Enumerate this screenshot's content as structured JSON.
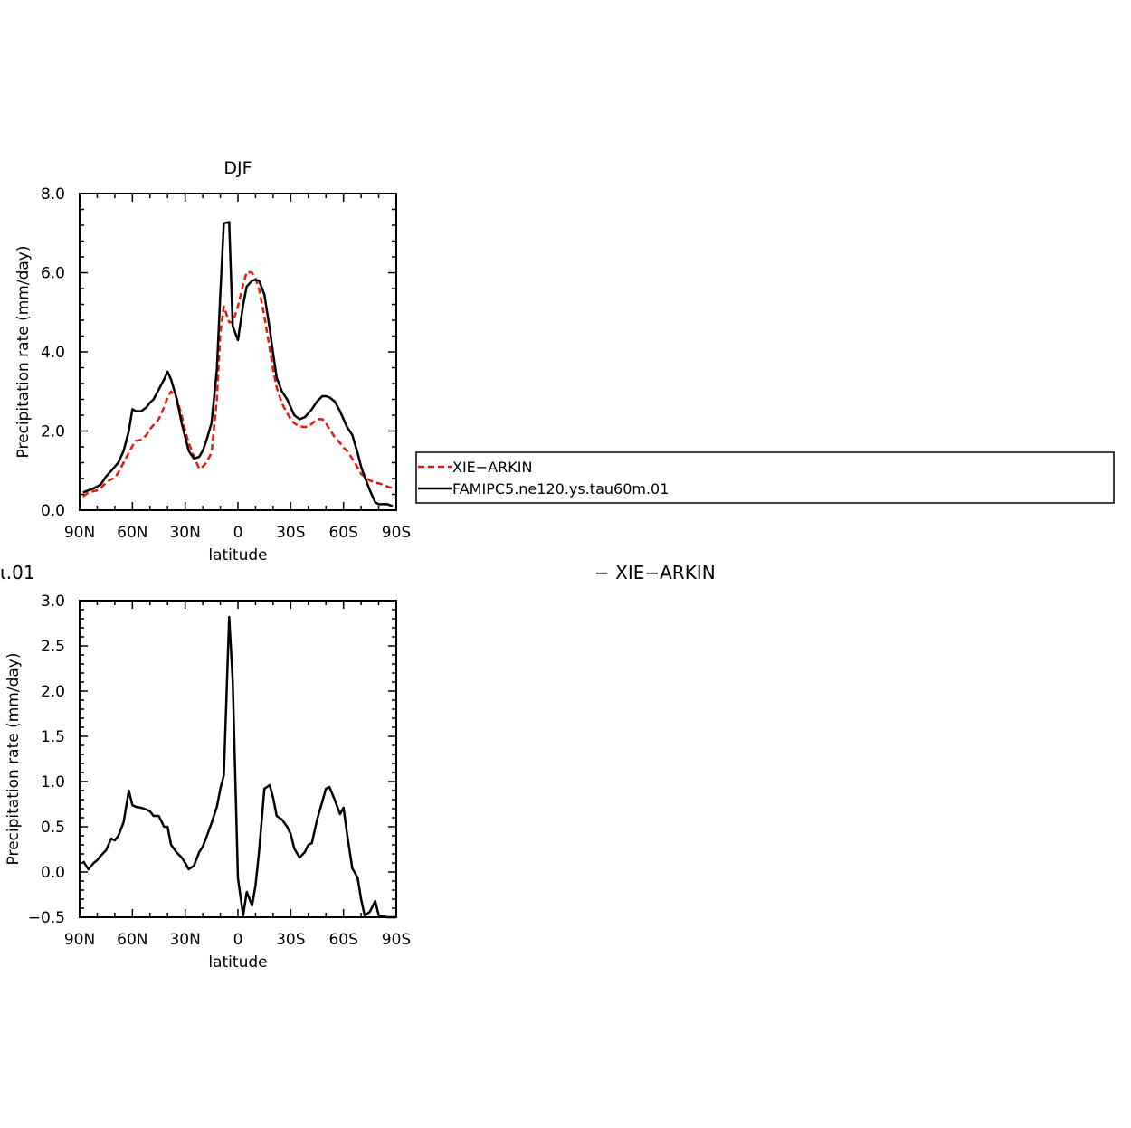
{
  "chart_data": [
    {
      "type": "line",
      "title": "DJF",
      "xlabel": "latitude",
      "ylabel": "Precipitation rate (mm/day)",
      "x_tick_labels": [
        "90N",
        "60N",
        "30N",
        "0",
        "30S",
        "60S",
        "90S"
      ],
      "x_ticks": [
        90,
        60,
        30,
        0,
        -30,
        -60,
        -90
      ],
      "xlim": [
        90,
        -90
      ],
      "y_tick_labels": [
        "0.0",
        "2.0",
        "4.0",
        "6.0",
        "8.0"
      ],
      "y_ticks": [
        0,
        2,
        4,
        6,
        8
      ],
      "ylim": [
        0,
        8
      ],
      "legend": {
        "placement": "right, outside plot",
        "entries": [
          "XIE−ARKIN",
          "FAMIPC5.ne120.ys.tau60m.01"
        ]
      },
      "series": [
        {
          "name": "XIE−ARKIN",
          "color": "#e8160c",
          "dash": true,
          "x": [
            88,
            85,
            82,
            80,
            78,
            75,
            72,
            70,
            68,
            65,
            62,
            60,
            58,
            55,
            52,
            50,
            48,
            45,
            42,
            40,
            38,
            35,
            32,
            30,
            28,
            25,
            22,
            20,
            18,
            15,
            12,
            10,
            8,
            5,
            3,
            0,
            -3,
            -5,
            -8,
            -10,
            -12,
            -15,
            -18,
            -20,
            -22,
            -25,
            -28,
            -30,
            -32,
            -35,
            -38,
            -40,
            -42,
            -45,
            -48,
            -50,
            -52,
            -55,
            -58,
            -60,
            -62,
            -65,
            -68,
            -70,
            -72,
            -75,
            -78,
            -80,
            -82,
            -85,
            -88
          ],
          "y": [
            0.35,
            0.45,
            0.48,
            0.5,
            0.55,
            0.7,
            0.78,
            0.82,
            0.95,
            1.2,
            1.45,
            1.62,
            1.75,
            1.78,
            1.9,
            2.05,
            2.15,
            2.3,
            2.6,
            2.85,
            3.0,
            2.85,
            2.4,
            2.0,
            1.7,
            1.35,
            1.05,
            1.1,
            1.2,
            1.45,
            2.8,
            4.5,
            5.15,
            4.75,
            4.75,
            5.15,
            5.7,
            6.02,
            6.0,
            5.85,
            5.6,
            4.9,
            4.1,
            3.55,
            3.1,
            2.7,
            2.45,
            2.3,
            2.2,
            2.12,
            2.1,
            2.12,
            2.18,
            2.3,
            2.3,
            2.2,
            2.05,
            1.85,
            1.7,
            1.58,
            1.5,
            1.3,
            1.08,
            0.92,
            0.85,
            0.75,
            0.7,
            0.68,
            0.65,
            0.6,
            0.55
          ]
        },
        {
          "name": "FAMIPC5.ne120.ys.tau60m.01",
          "color": "#000000",
          "dash": false,
          "x": [
            88,
            85,
            82,
            80,
            78,
            75,
            72,
            70,
            68,
            65,
            62,
            60,
            58,
            55,
            52,
            50,
            48,
            45,
            42,
            40,
            38,
            35,
            32,
            30,
            28,
            25,
            22,
            20,
            18,
            15,
            12,
            10,
            8,
            5,
            3,
            0,
            -3,
            -5,
            -8,
            -10,
            -12,
            -15,
            -18,
            -20,
            -22,
            -25,
            -28,
            -30,
            -32,
            -35,
            -38,
            -40,
            -42,
            -45,
            -48,
            -50,
            -52,
            -55,
            -58,
            -60,
            -62,
            -65,
            -68,
            -70,
            -72,
            -75,
            -78,
            -80,
            -82,
            -85,
            -88
          ],
          "y": [
            0.45,
            0.5,
            0.55,
            0.6,
            0.65,
            0.85,
            1.0,
            1.1,
            1.2,
            1.5,
            2.0,
            2.55,
            2.5,
            2.5,
            2.6,
            2.72,
            2.8,
            3.05,
            3.3,
            3.5,
            3.3,
            2.85,
            2.2,
            1.85,
            1.5,
            1.3,
            1.35,
            1.5,
            1.75,
            2.2,
            3.55,
            5.5,
            7.25,
            7.28,
            4.65,
            4.3,
            5.2,
            5.65,
            5.8,
            5.82,
            5.8,
            5.45,
            4.6,
            3.95,
            3.35,
            3.0,
            2.8,
            2.6,
            2.4,
            2.3,
            2.35,
            2.45,
            2.55,
            2.75,
            2.88,
            2.88,
            2.85,
            2.75,
            2.5,
            2.3,
            2.1,
            1.9,
            1.45,
            1.1,
            0.85,
            0.5,
            0.2,
            0.15,
            0.15,
            0.15,
            0.1
          ]
        }
      ]
    },
    {
      "type": "line",
      "title": "",
      "xlabel": "latitude",
      "ylabel": "Precipitation rate (mm/day)",
      "x_tick_labels": [
        "90N",
        "60N",
        "30N",
        "0",
        "30S",
        "60S",
        "90S"
      ],
      "x_ticks": [
        90,
        60,
        30,
        0,
        -30,
        -60,
        -90
      ],
      "xlim": [
        90,
        -90
      ],
      "y_tick_labels": [
        "−0.5",
        "0.0",
        "0.5",
        "1.0",
        "1.5",
        "2.0",
        "2.5",
        "3.0"
      ],
      "y_ticks": [
        -0.5,
        0,
        0.5,
        1.0,
        1.5,
        2.0,
        2.5,
        3.0
      ],
      "ylim": [
        -0.5,
        3.0
      ],
      "series": [
        {
          "color": "#000000",
          "dash": false,
          "x": [
            88,
            85,
            82,
            80,
            78,
            75,
            72,
            70,
            68,
            65,
            62,
            60,
            58,
            55,
            52,
            50,
            48,
            45,
            42,
            40,
            38,
            35,
            32,
            30,
            28,
            25,
            22,
            20,
            18,
            15,
            12,
            10,
            8,
            5,
            3,
            0,
            -3,
            -5,
            -8,
            -10,
            -12,
            -15,
            -18,
            -20,
            -22,
            -25,
            -28,
            -30,
            -32,
            -35,
            -38,
            -40,
            -42,
            -45,
            -48,
            -50,
            -52,
            -55,
            -58,
            -60,
            -62,
            -65,
            -68,
            -70,
            -72,
            -75,
            -78,
            -80,
            -82,
            -85,
            -88,
            -90
          ],
          "y": [
            0.12,
            0.03,
            0.1,
            0.13,
            0.18,
            0.24,
            0.37,
            0.35,
            0.4,
            0.55,
            0.9,
            0.74,
            0.72,
            0.71,
            0.69,
            0.67,
            0.62,
            0.62,
            0.5,
            0.5,
            0.3,
            0.22,
            0.16,
            0.1,
            0.03,
            0.07,
            0.22,
            0.28,
            0.38,
            0.54,
            0.72,
            0.92,
            1.07,
            2.82,
            2.12,
            -0.07,
            -0.48,
            -0.22,
            -0.37,
            -0.15,
            0.22,
            0.92,
            0.96,
            0.82,
            0.62,
            0.58,
            0.5,
            0.42,
            0.26,
            0.16,
            0.22,
            0.3,
            0.32,
            0.58,
            0.78,
            0.92,
            0.94,
            0.8,
            0.64,
            0.71,
            0.42,
            0.04,
            -0.06,
            -0.3,
            -0.48,
            -0.44,
            -0.32,
            -0.48,
            -0.49,
            -0.5,
            -0.5,
            -0.5
          ]
        }
      ]
    }
  ],
  "stray_labels": {
    "left_fragment": "ι.01",
    "right_fragment": "− XIE−ARKIN"
  }
}
